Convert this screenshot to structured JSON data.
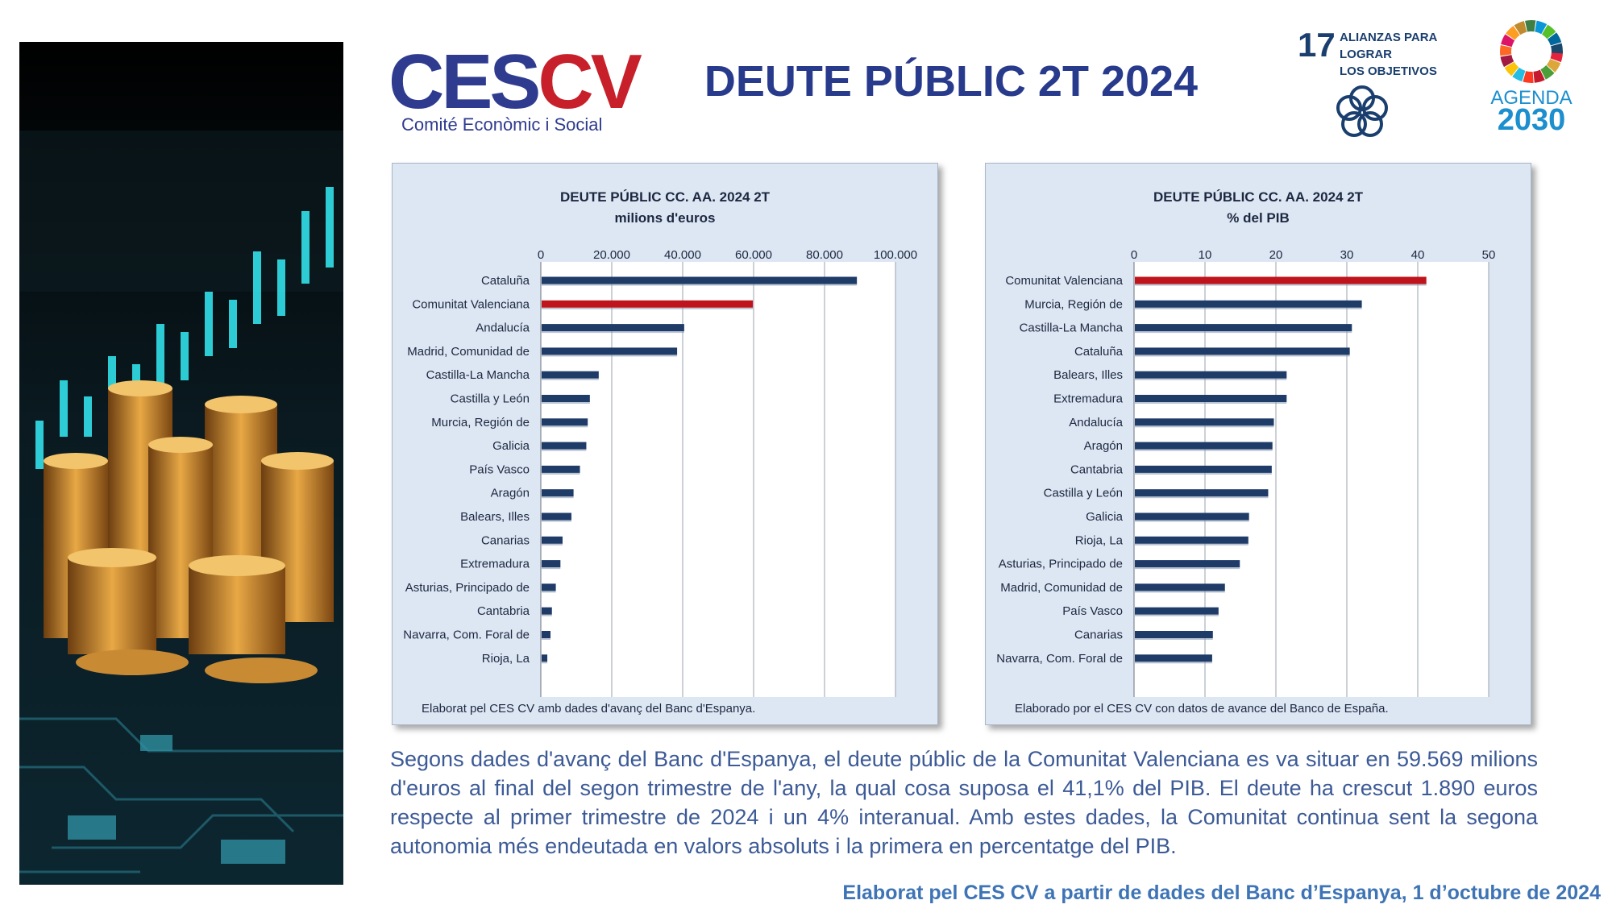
{
  "header": {
    "logo_part1": "CES",
    "logo_part2": "CV",
    "logo_subtitle": "Comité Econòmic i Social",
    "title": "DEUTE PÚBLIC 2T 2024",
    "sdg17_number": "17",
    "sdg17_lines": [
      "ALIANZAS PARA",
      "LOGRAR",
      "LOS OBJETIVOS"
    ],
    "agenda_label": "AGENDA",
    "agenda_year": "2030"
  },
  "colors": {
    "bar": "#1f3c68",
    "highlight": "#c0141d",
    "panel_bg": "#dde6f3",
    "title_blue": "#283a8c",
    "text_blue": "#3c5a96"
  },
  "chart_data": [
    {
      "type": "bar",
      "orientation": "horizontal",
      "title": "DEUTE PÚBLIC CC. AA. 2024 2T",
      "subtitle": "milions d'euros",
      "xlim": [
        0,
        100000
      ],
      "tick_labels": [
        "0",
        "20.000",
        "40.000",
        "60.000",
        "80.000",
        "100.000"
      ],
      "grid": true,
      "highlight": "Comunitat Valenciana",
      "categories": [
        "Cataluña",
        "Comunitat Valenciana",
        "Andalucía",
        "Madrid, Comunidad de",
        "Castilla-La Mancha",
        "Castilla y León",
        "Murcia, Región de",
        "Galicia",
        "País Vasco",
        "Aragón",
        "Balears, Illes",
        "Canarias",
        "Extremadura",
        "Asturias, Principado de",
        "Cantabria",
        "Navarra, Com. Foral de",
        "Rioja, La"
      ],
      "values": [
        88900,
        59569,
        40200,
        38200,
        16100,
        13600,
        13000,
        12600,
        10800,
        9000,
        8400,
        5900,
        5300,
        4000,
        2900,
        2500,
        1600
      ],
      "source": "Elaborat pel CES CV amb dades d'avanç del Banc d'Espanya."
    },
    {
      "type": "bar",
      "orientation": "horizontal",
      "title": "DEUTE PÚBLIC CC. AA. 2024 2T",
      "subtitle": "% del PIB",
      "xlim": [
        0,
        50
      ],
      "tick_labels": [
        "0",
        "10",
        "20",
        "30",
        "40",
        "50"
      ],
      "grid": true,
      "highlight": "Comunitat Valenciana",
      "categories": [
        "Comunitat Valenciana",
        "Murcia, Región de",
        "Castilla-La Mancha",
        "Cataluña",
        "Balears, Illes",
        "Extremadura",
        "Andalucía",
        "Aragón",
        "Cantabria",
        "Castilla y León",
        "Galicia",
        "Rioja, La",
        "Asturias, Principado de",
        "Madrid, Comunidad de",
        "País Vasco",
        "Canarias",
        "Navarra, Com. Foral de"
      ],
      "values": [
        41.1,
        32.0,
        30.6,
        30.3,
        21.4,
        21.4,
        19.6,
        19.4,
        19.3,
        18.8,
        16.1,
        16.0,
        14.8,
        12.7,
        11.8,
        11.0,
        10.9
      ],
      "source": "Elaborado por el CES CV con datos de avance del Banco de España."
    }
  ],
  "summary": "Segons dades d'avanç del Banc d'Espanya, el deute públic de la Comunitat Valenciana es va situar en 59.569 milions d'euros al final del segon trimestre de l'any, la qual cosa suposa el 41,1% del PIB. El deute ha crescut 1.890 euros respecte al primer trimestre de 2024 i un 4% interanual. Amb estes dades, la Comunitat continua sent la segona autonomia més endeutada en valors absoluts i la primera en percentatge del PIB.",
  "footer": {
    "credit": "Elaborat pel CES CV a partir de dades del Banc d’Espanya, 1 d’octubre de 2024"
  }
}
